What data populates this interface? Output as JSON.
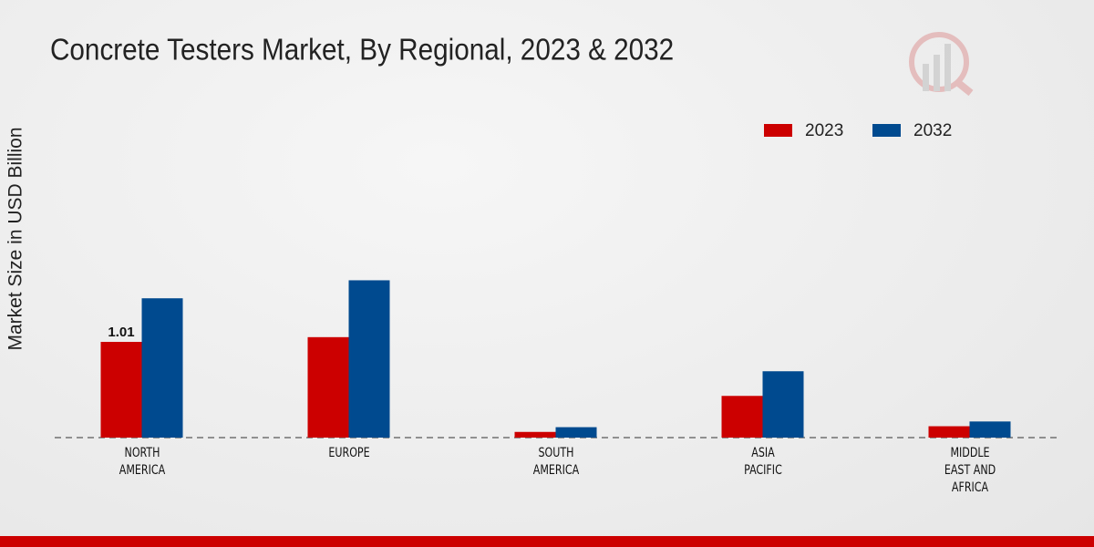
{
  "chart_data": {
    "type": "bar",
    "title": "Concrete Testers Market, By Regional, 2023 & 2032",
    "y_label": "Market Size in USD Billion",
    "categories": [
      "NORTH AMERICA",
      "EUROPE",
      "SOUTH AMERICA",
      "ASIA PACIFIC",
      "MIDDLE EAST AND AFRICA"
    ],
    "series": [
      {
        "name": "2023",
        "color": "#cc0000",
        "values": [
          1.01,
          1.06,
          0.06,
          0.44,
          0.12
        ],
        "value_labels": [
          "1.01",
          null,
          null,
          null,
          null
        ]
      },
      {
        "name": "2032",
        "color": "#004a8f",
        "values": [
          1.47,
          1.66,
          0.11,
          0.7,
          0.17
        ]
      }
    ],
    "ylim": [
      0,
      3.8
    ]
  }
}
